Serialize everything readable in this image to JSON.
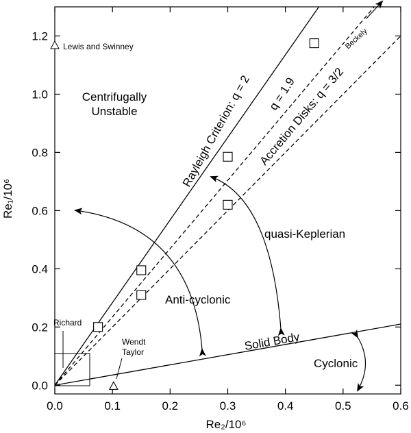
{
  "chart_data": {
    "type": "scatter",
    "xlabel": "Re₂/10⁶",
    "ylabel": "Re₁/10⁶",
    "xlim": [
      0,
      0.6
    ],
    "ylim": [
      -0.03,
      1.3
    ],
    "x_ticks": [
      "0.0",
      "0.1",
      "0.2",
      "0.3",
      "0.4",
      "0.5",
      "0.6"
    ],
    "y_ticks": [
      "0.0",
      "0.2",
      "0.4",
      "0.6",
      "0.8",
      "1.0",
      "1.2"
    ],
    "lines": [
      {
        "name": "Rayleigh Criterion: q = 2",
        "style": "solid",
        "x": [
          0,
          0.458
        ],
        "y": [
          0,
          1.3
        ]
      },
      {
        "name": "q = 1.9",
        "style": "dashed",
        "x": [
          0,
          0.554
        ],
        "y": [
          0,
          1.3
        ]
      },
      {
        "name": "Accretion Disks: q = 3/2",
        "style": "dashed",
        "x": [
          0,
          0.6
        ],
        "y": [
          0,
          1.2
        ]
      },
      {
        "name": "Solid Body",
        "style": "solid",
        "x": [
          0,
          0.6
        ],
        "y": [
          0,
          0.21
        ]
      }
    ],
    "squares": [
      {
        "x": 0.075,
        "y": 0.2
      },
      {
        "x": 0.15,
        "y": 0.395
      },
      {
        "x": 0.15,
        "y": 0.31
      },
      {
        "x": 0.3,
        "y": 0.785
      },
      {
        "x": 0.3,
        "y": 0.62
      },
      {
        "x": 0.45,
        "y": 1.175
      }
    ],
    "triangles": [
      {
        "x": 0.102,
        "y": -0.005
      }
    ],
    "legend_entry": {
      "marker": "triangle",
      "label": "Lewis and Swinney",
      "x": 0.0,
      "y": 1.19
    },
    "labels": {
      "rayleigh": "Rayleigh Criterion: q = 2",
      "q19": "q = 1.9",
      "accretion": "Accretion Disks: q = 3/2",
      "solid_body": "Solid Body",
      "beckely": "Beckely",
      "centrifugal_1": "Centrifugally",
      "centrifugal_2": "Unstable",
      "quasi_keplerian": "quasi-Keplerian",
      "anti_cyclonic": "Anti-cyclonic",
      "cyclonic": "Cyclonic",
      "richard": "Richard",
      "wendt_1": "Wendt",
      "wendt_2": "Taylor"
    },
    "grid": false,
    "colors": {
      "ink": "#000000",
      "background": "#ffffff"
    }
  }
}
